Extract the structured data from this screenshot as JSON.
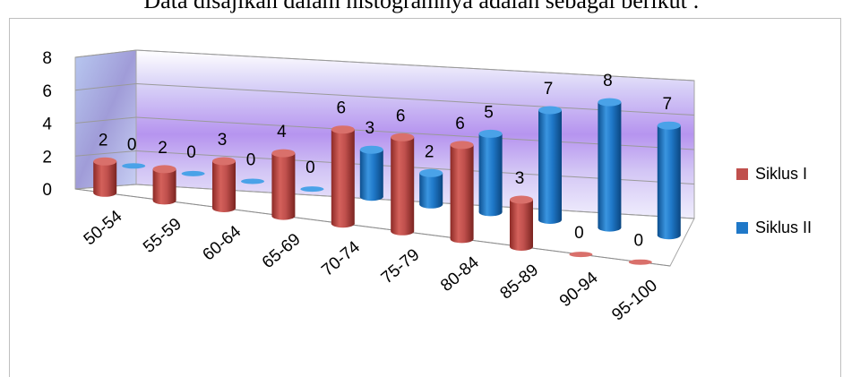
{
  "caption": "Data disajikan dalam histogramnya adalah sebagai berikut :",
  "chart_data": {
    "type": "bar",
    "style": "3d-cylinder",
    "categories": [
      "50-54",
      "55-59",
      "60-64",
      "65-69",
      "70-74",
      "75-79",
      "80-84",
      "85-89",
      "90-94",
      "95-100"
    ],
    "series": [
      {
        "name": "Siklus I",
        "color": "#c0504d",
        "values": [
          2,
          2,
          3,
          4,
          6,
          6,
          6,
          3,
          0,
          0
        ]
      },
      {
        "name": "Siklus II",
        "color": "#1f78c8",
        "values": [
          0,
          0,
          0,
          0,
          3,
          2,
          5,
          7,
          8,
          7
        ]
      }
    ],
    "ylim": [
      0,
      8
    ],
    "yticks": [
      0,
      2,
      4,
      6,
      8
    ],
    "grid": true,
    "legend": "right",
    "wall_color": "#b9a9f0"
  }
}
